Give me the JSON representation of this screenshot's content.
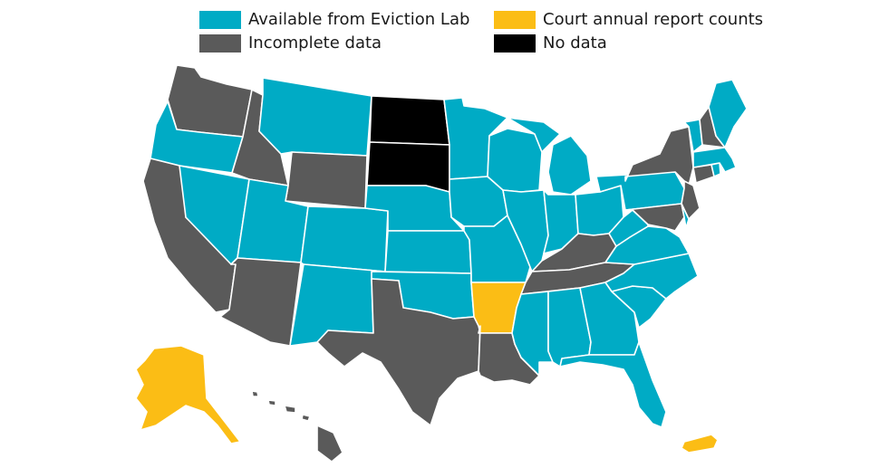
{
  "colors": {
    "available": "#00abc5",
    "incomplete": "#5a5a5a",
    "court": "#fbbd15",
    "nodata": "#000000"
  },
  "legend": [
    {
      "key": "available",
      "label": "Available from Eviction Lab"
    },
    {
      "key": "incomplete",
      "label": "Incomplete data"
    },
    {
      "key": "court",
      "label": "Court annual report counts"
    },
    {
      "key": "nodata",
      "label": "No data"
    }
  ],
  "map": {
    "regions": [
      {
        "name": "Washington",
        "status": "incomplete"
      },
      {
        "name": "Oregon",
        "status": "available"
      },
      {
        "name": "California",
        "status": "incomplete"
      },
      {
        "name": "Nevada",
        "status": "available"
      },
      {
        "name": "Idaho",
        "status": "incomplete"
      },
      {
        "name": "Montana",
        "status": "available"
      },
      {
        "name": "Wyoming",
        "status": "incomplete"
      },
      {
        "name": "Utah",
        "status": "available"
      },
      {
        "name": "Arizona",
        "status": "incomplete"
      },
      {
        "name": "Colorado",
        "status": "available"
      },
      {
        "name": "New Mexico",
        "status": "available"
      },
      {
        "name": "North Dakota",
        "status": "nodata"
      },
      {
        "name": "South Dakota",
        "status": "nodata"
      },
      {
        "name": "Nebraska",
        "status": "available"
      },
      {
        "name": "Kansas",
        "status": "available"
      },
      {
        "name": "Oklahoma",
        "status": "available"
      },
      {
        "name": "Texas",
        "status": "incomplete"
      },
      {
        "name": "Minnesota",
        "status": "available"
      },
      {
        "name": "Iowa",
        "status": "available"
      },
      {
        "name": "Missouri",
        "status": "available"
      },
      {
        "name": "Arkansas",
        "status": "court"
      },
      {
        "name": "Louisiana",
        "status": "incomplete"
      },
      {
        "name": "Wisconsin",
        "status": "available"
      },
      {
        "name": "Illinois",
        "status": "available"
      },
      {
        "name": "Michigan",
        "status": "available"
      },
      {
        "name": "Indiana",
        "status": "available"
      },
      {
        "name": "Ohio",
        "status": "available"
      },
      {
        "name": "Kentucky",
        "status": "incomplete"
      },
      {
        "name": "Tennessee",
        "status": "incomplete"
      },
      {
        "name": "Mississippi",
        "status": "available"
      },
      {
        "name": "Alabama",
        "status": "available"
      },
      {
        "name": "Georgia",
        "status": "available"
      },
      {
        "name": "Florida",
        "status": "available"
      },
      {
        "name": "South Carolina",
        "status": "available"
      },
      {
        "name": "North Carolina",
        "status": "available"
      },
      {
        "name": "Virginia",
        "status": "available"
      },
      {
        "name": "West Virginia",
        "status": "available"
      },
      {
        "name": "Pennsylvania",
        "status": "available"
      },
      {
        "name": "New York",
        "status": "incomplete"
      },
      {
        "name": "New Jersey",
        "status": "incomplete"
      },
      {
        "name": "Maryland",
        "status": "incomplete"
      },
      {
        "name": "Delaware",
        "status": "available"
      },
      {
        "name": "Connecticut",
        "status": "incomplete"
      },
      {
        "name": "Rhode Island",
        "status": "available"
      },
      {
        "name": "Massachusetts",
        "status": "available"
      },
      {
        "name": "Vermont",
        "status": "available"
      },
      {
        "name": "New Hampshire",
        "status": "incomplete"
      },
      {
        "name": "Maine",
        "status": "available"
      },
      {
        "name": "Alaska",
        "status": "court"
      },
      {
        "name": "Hawaii",
        "status": "incomplete"
      },
      {
        "name": "Puerto Rico",
        "status": "court"
      }
    ]
  }
}
